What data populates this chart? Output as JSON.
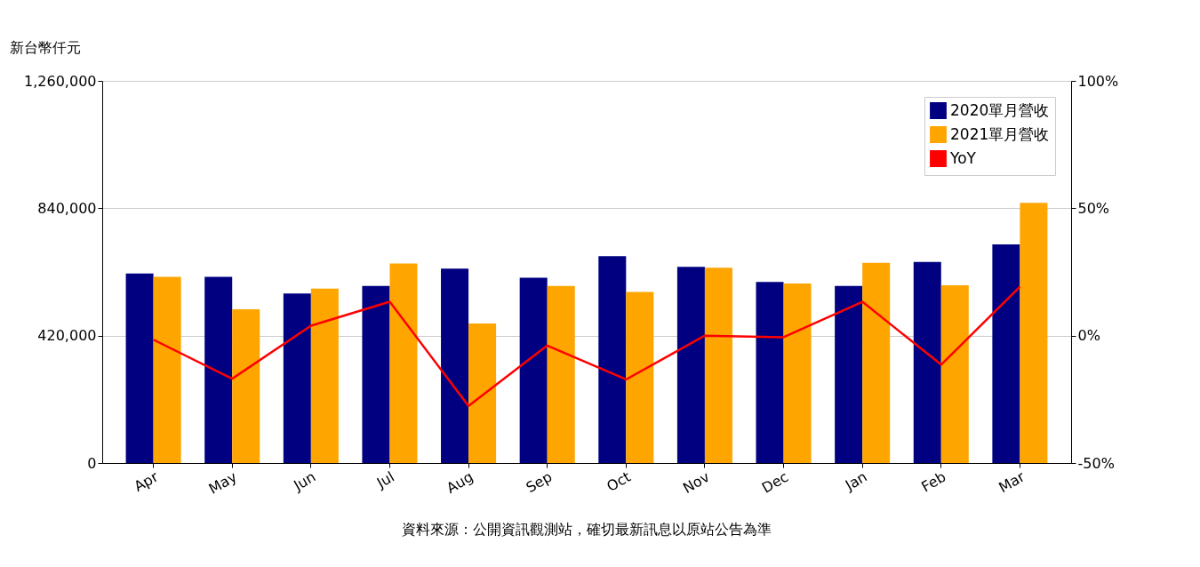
{
  "chart_data": {
    "type": "bar",
    "ylabel": "新台幣仟元",
    "categories": [
      "Apr",
      "May",
      "Jun",
      "Jul",
      "Aug",
      "Sep",
      "Oct",
      "Nov",
      "Dec",
      "Jan",
      "Feb",
      "Mar"
    ],
    "series": [
      {
        "name": "2020單月營收",
        "color": "#000080",
        "values": [
          625000,
          614000,
          559000,
          584000,
          641000,
          611000,
          682000,
          647000,
          597000,
          584000,
          663000,
          721000
        ]
      },
      {
        "name": "2021單月營收",
        "color": "#ffa500",
        "values": [
          614000,
          507000,
          575000,
          658000,
          460000,
          584000,
          564000,
          644000,
          592000,
          660000,
          586000,
          858000
        ]
      },
      {
        "name": "YoY",
        "type": "line",
        "axis": "y2",
        "color": "#ff0000",
        "values": [
          -1.6,
          -16.9,
          3.9,
          13.3,
          -27.6,
          -3.9,
          -17.2,
          0.0,
          -0.6,
          13.3,
          -11.4,
          19.2
        ]
      }
    ],
    "ylim": [
      0,
      1260000
    ],
    "yticks": [
      {
        "value": 0,
        "label": "0"
      },
      {
        "value": 420000,
        "label": "420,000"
      },
      {
        "value": 840000,
        "label": "840,000"
      },
      {
        "value": 1260000,
        "label": "1,260,000"
      }
    ],
    "y2lim": [
      -50,
      100
    ],
    "y2ticks": [
      {
        "value": -50,
        "label": "-50%"
      },
      {
        "value": 0,
        "label": "0%"
      },
      {
        "value": 50,
        "label": "50%"
      },
      {
        "value": 100,
        "label": "100%"
      }
    ],
    "grid": "y",
    "legend": "top right",
    "annotations": [
      "資料來源：公開資訊觀測站，確切最新訊息以原站公告為準"
    ]
  }
}
